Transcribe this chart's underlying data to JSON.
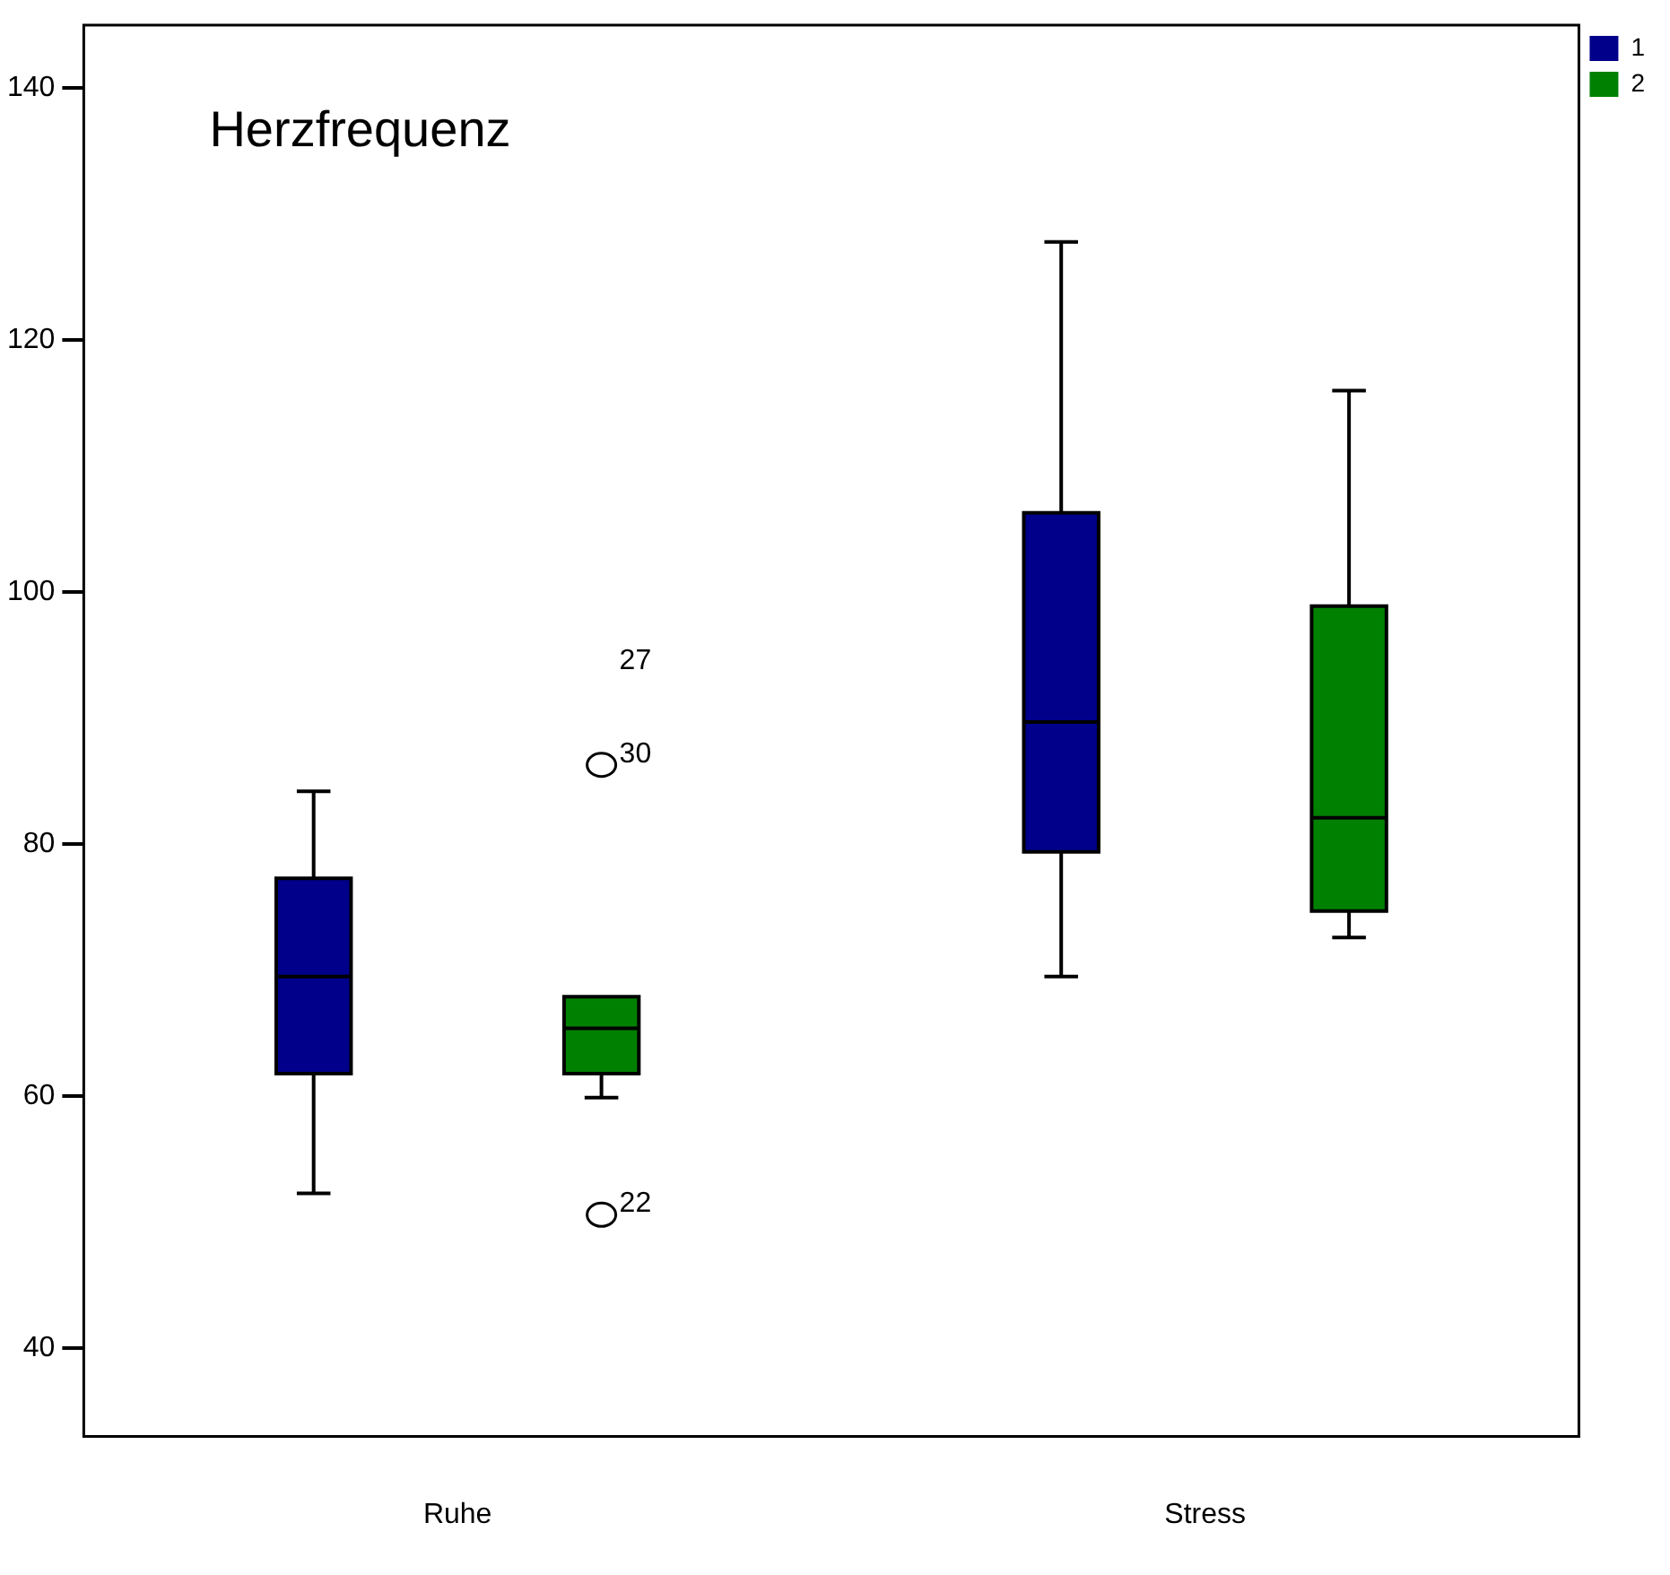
{
  "chart_data": {
    "type": "box",
    "title": "Herzfrequenz",
    "categories": [
      "Ruhe",
      "Stress"
    ],
    "series": [
      {
        "name": "1",
        "color": "#00008b",
        "boxes": [
          {
            "low": 52.3,
            "q1": 61.8,
            "median": 69.5,
            "q3": 77.3,
            "high": 84.2
          },
          {
            "low": 69.5,
            "q1": 79.4,
            "median": 89.7,
            "q3": 106.3,
            "high": 127.8
          }
        ]
      },
      {
        "name": "2",
        "color": "#008000",
        "boxes": [
          {
            "low": 59.9,
            "q1": 61.8,
            "median": 65.4,
            "q3": 67.9,
            "high": 67.9,
            "outliers": [
              86.3,
              50.6
            ]
          },
          {
            "low": 72.6,
            "q1": 74.7,
            "median": 82.1,
            "q3": 98.9,
            "high": 116
          }
        ]
      }
    ],
    "annotations": [
      "27",
      "30",
      "22"
    ],
    "ylim": [
      33,
      145
    ],
    "yticks": [
      40,
      60,
      80,
      100,
      120,
      140
    ],
    "grid": false,
    "legend": "top right"
  }
}
